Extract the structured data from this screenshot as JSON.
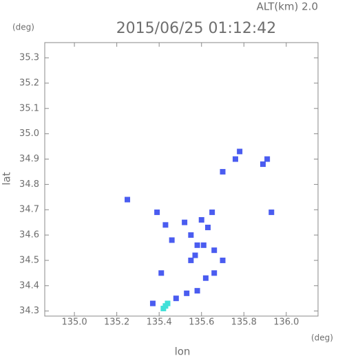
{
  "chart_data": {
    "type": "scatter",
    "title": "2015/06/25 01:12:42",
    "subtitle": "ALT(km) 2.0",
    "x_label": "lon",
    "y_label": "lat",
    "x_unit": "(deg)",
    "y_unit": "(deg)",
    "xlim": [
      134.86,
      136.15
    ],
    "ylim": [
      34.28,
      35.36
    ],
    "xticks": [
      {
        "value": 135,
        "label": "135.0"
      },
      135.2,
      135.4,
      135.6,
      135.8,
      {
        "value": 136,
        "label": "136.0"
      }
    ],
    "yticks": [
      34.3,
      34.4,
      34.5,
      34.6,
      34.7,
      34.8,
      34.9,
      {
        "value": 35,
        "label": "35.0"
      },
      35.1,
      35.2,
      35.3
    ],
    "series": [
      {
        "color": "#4a5cf0",
        "x": [
          135.78,
          135.76,
          135.89,
          135.91,
          135.7,
          135.25,
          135.39,
          135.43,
          135.52,
          135.6,
          135.65,
          135.63,
          135.55,
          135.46,
          135.58,
          135.61,
          135.57,
          135.55,
          135.66,
          135.7,
          135.66,
          135.62,
          135.41,
          135.93,
          135.58,
          135.53,
          135.48,
          135.37
        ],
        "y": [
          34.93,
          34.9,
          34.88,
          34.9,
          34.85,
          34.74,
          34.69,
          34.64,
          34.65,
          34.66,
          34.69,
          34.63,
          34.6,
          34.58,
          34.56,
          34.56,
          34.52,
          34.5,
          34.54,
          34.5,
          34.45,
          34.43,
          34.45,
          34.69,
          34.38,
          34.37,
          34.35,
          34.33
        ]
      },
      {
        "color": "#3fe0d8",
        "x": [
          135.44,
          135.42,
          135.43
        ],
        "y": [
          34.33,
          34.31,
          34.32
        ]
      }
    ]
  }
}
